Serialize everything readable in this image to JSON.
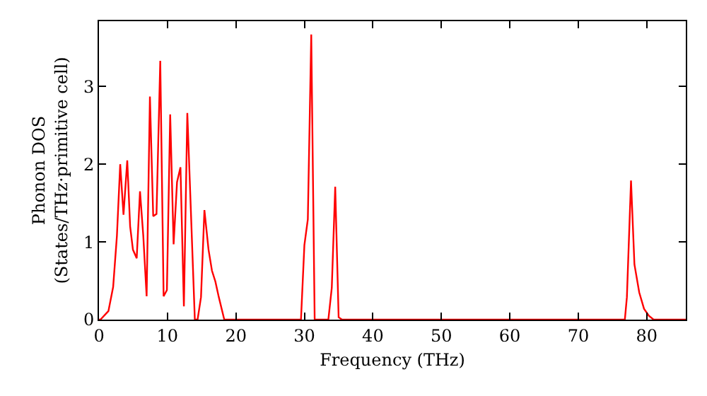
{
  "chart_data": {
    "type": "line",
    "xlabel": "Frequency (THz)",
    "ylabel": "Phonon DOS\n(States/THz·primitive cell)",
    "x": [
      0,
      0.21,
      1.38,
      2.07,
      2.62,
      3.1,
      3.58,
      4.13,
      4.55,
      4.96,
      5.51,
      5.99,
      6.47,
      6.96,
      7.44,
      7.92,
      8.4,
      8.95,
      9.44,
      9.92,
      10.4,
      10.9,
      11.4,
      11.9,
      12.4,
      12.9,
      14.0,
      14.4,
      14.9,
      15.4,
      16.0,
      16.5,
      17.0,
      17.5,
      18.3,
      29.5,
      30.0,
      30.5,
      31.0,
      31.5,
      33.5,
      34.0,
      34.5,
      35.0,
      35.5,
      76.8,
      77.1,
      77.7,
      78.2,
      78.9,
      79.6,
      80.3,
      81.0,
      85.7
    ],
    "series": [
      {
        "color": "#ff0000",
        "values": [
          0,
          0,
          0.11,
          0.42,
          1.08,
          2.0,
          1.35,
          2.05,
          1.2,
          0.9,
          0.79,
          1.65,
          1.08,
          0.3,
          2.87,
          1.33,
          1.36,
          3.33,
          0.3,
          0.38,
          2.64,
          0.97,
          1.77,
          1.96,
          0.17,
          2.66,
          0,
          0,
          0.29,
          1.41,
          0.9,
          0.63,
          0.49,
          0.29,
          0,
          0,
          0.96,
          1.29,
          3.67,
          0,
          0,
          0.41,
          1.71,
          0.03,
          0,
          0,
          0.29,
          1.79,
          0.71,
          0.35,
          0.14,
          0.05,
          0,
          0
        ]
      }
    ],
    "xlim": [
      0,
      85.7
    ],
    "xticks": [
      0,
      10,
      20,
      30,
      40,
      50,
      60,
      70,
      80
    ],
    "ylim": [
      0,
      3.84
    ],
    "yticks": [
      0,
      1,
      2,
      3
    ],
    "grid": false,
    "marker": "none",
    "line_style": "solid"
  }
}
